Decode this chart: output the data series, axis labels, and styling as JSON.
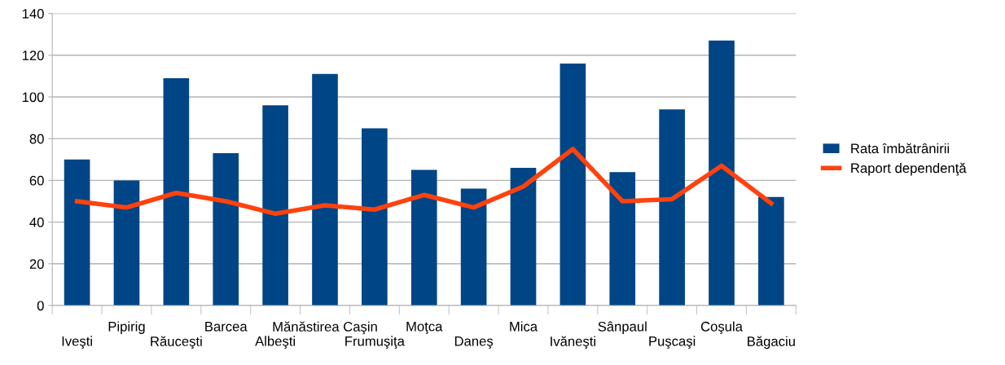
{
  "chart_data": {
    "type": "bar",
    "categories": [
      "Iveşti",
      "Pipirig",
      "Răuceşti",
      "Barcea",
      "Albeşti",
      "Mănăstirea Caşin",
      "Frumuşiţa",
      "Moţca",
      "Daneş",
      "Mica",
      "Ivăneşti",
      "Sânpaul",
      "Puşcaşi",
      "Coşula",
      "Băgaciu"
    ],
    "series": [
      {
        "name": "Rata îmbătrânirii",
        "color": "#004586",
        "values": [
          70,
          60,
          109,
          73,
          96,
          111,
          85,
          65,
          56,
          66,
          116,
          64,
          94,
          127,
          52
        ]
      },
      {
        "name": "Raport dependenţă",
        "type": "line",
        "color": "#ff420e",
        "values": [
          50,
          47,
          54,
          50,
          44,
          48,
          46,
          53,
          47,
          57,
          75,
          50,
          51,
          67,
          49
        ]
      }
    ],
    "ylim": [
      0,
      140
    ],
    "yticks": [
      0,
      20,
      40,
      60,
      80,
      100,
      120,
      140
    ],
    "grid": "y",
    "legend": "right",
    "marker": "none",
    "line_style": "solid"
  }
}
